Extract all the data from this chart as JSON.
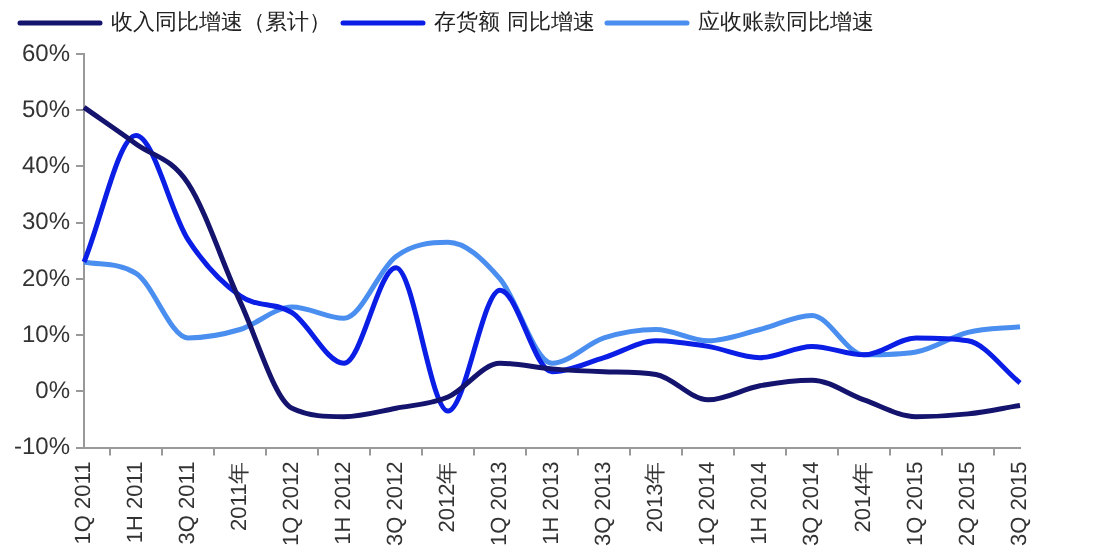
{
  "chart_data": {
    "type": "line",
    "categories": [
      "1Q 2011",
      "1H 2011",
      "3Q 2011",
      "2011年",
      "1Q 2012",
      "1H 2012",
      "3Q 2012",
      "2012年",
      "1Q 2013",
      "1H 2013",
      "3Q 2013",
      "2013年",
      "1Q 2014",
      "1H 2014",
      "3Q 2014",
      "2014年",
      "1Q 2015",
      "2Q 2015",
      "3Q 2015"
    ],
    "series": [
      {
        "name": "收入同比增速（累计）",
        "color": "#14146e",
        "values": [
          50.5,
          44,
          37,
          16,
          -3,
          -4.5,
          -3,
          -1,
          5,
          4,
          3.5,
          3,
          -1.5,
          1,
          2,
          -1.5,
          -4.5,
          -4,
          -2.5
        ]
      },
      {
        "name": "存货额 同比增速",
        "color": "#0a1ee6",
        "values": [
          23,
          45.5,
          27,
          17,
          14,
          5,
          22,
          -3.5,
          18,
          3.5,
          6,
          9,
          8,
          6,
          8,
          6.5,
          9.5,
          9,
          1.5
        ]
      },
      {
        "name": "应收账款同比增速",
        "color": "#4a8ef0",
        "values": [
          23,
          21,
          9.5,
          11,
          15,
          13,
          24,
          26.5,
          20,
          5,
          9.5,
          11,
          9,
          11,
          13.5,
          6.5,
          7,
          10.5,
          11.5
        ]
      }
    ],
    "ylim": [
      -10,
      60
    ],
    "yticks": [
      {
        "value": -10,
        "label": "-10%"
      },
      {
        "value": 0,
        "label": "0%"
      },
      {
        "value": 10,
        "label": "10%"
      },
      {
        "value": 20,
        "label": "20%"
      },
      {
        "value": 30,
        "label": "30%"
      },
      {
        "value": 40,
        "label": "40%"
      },
      {
        "value": 50,
        "label": "50%"
      },
      {
        "value": 60,
        "label": "60%"
      }
    ],
    "grid": false,
    "legend": "top",
    "marker": "none",
    "line_style": "solid"
  }
}
